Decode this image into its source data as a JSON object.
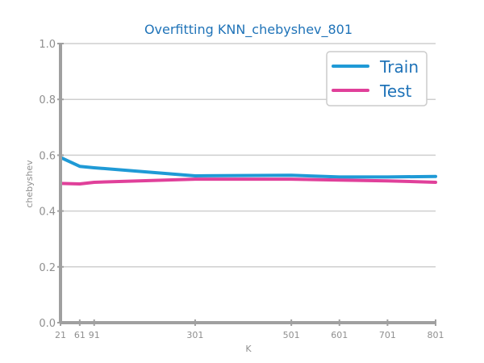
{
  "chart_data": {
    "type": "line",
    "title": "Overfitting KNN_chebyshev_801",
    "xlabel": "K",
    "ylabel": "chebyshev",
    "x": [
      21,
      61,
      91,
      301,
      501,
      601,
      701,
      801
    ],
    "x_tick_labels": [
      "21",
      "61",
      "91",
      "301",
      "501",
      "601",
      "701",
      "801"
    ],
    "y_tick_labels": [
      "0.0",
      "0.2",
      "0.4",
      "0.6",
      "0.8",
      "1.0"
    ],
    "xlim": [
      21,
      801
    ],
    "ylim": [
      0.0,
      1.0
    ],
    "grid": "horizontal",
    "legend_position": "top-right",
    "series": [
      {
        "name": "Train",
        "color": "#1f9ad6",
        "values": [
          0.592,
          0.56,
          0.555,
          0.526,
          0.528,
          0.522,
          0.522,
          0.524
        ]
      },
      {
        "name": "Test",
        "color": "#e0409a",
        "values": [
          0.499,
          0.497,
          0.503,
          0.514,
          0.514,
          0.511,
          0.508,
          0.503
        ]
      }
    ]
  }
}
